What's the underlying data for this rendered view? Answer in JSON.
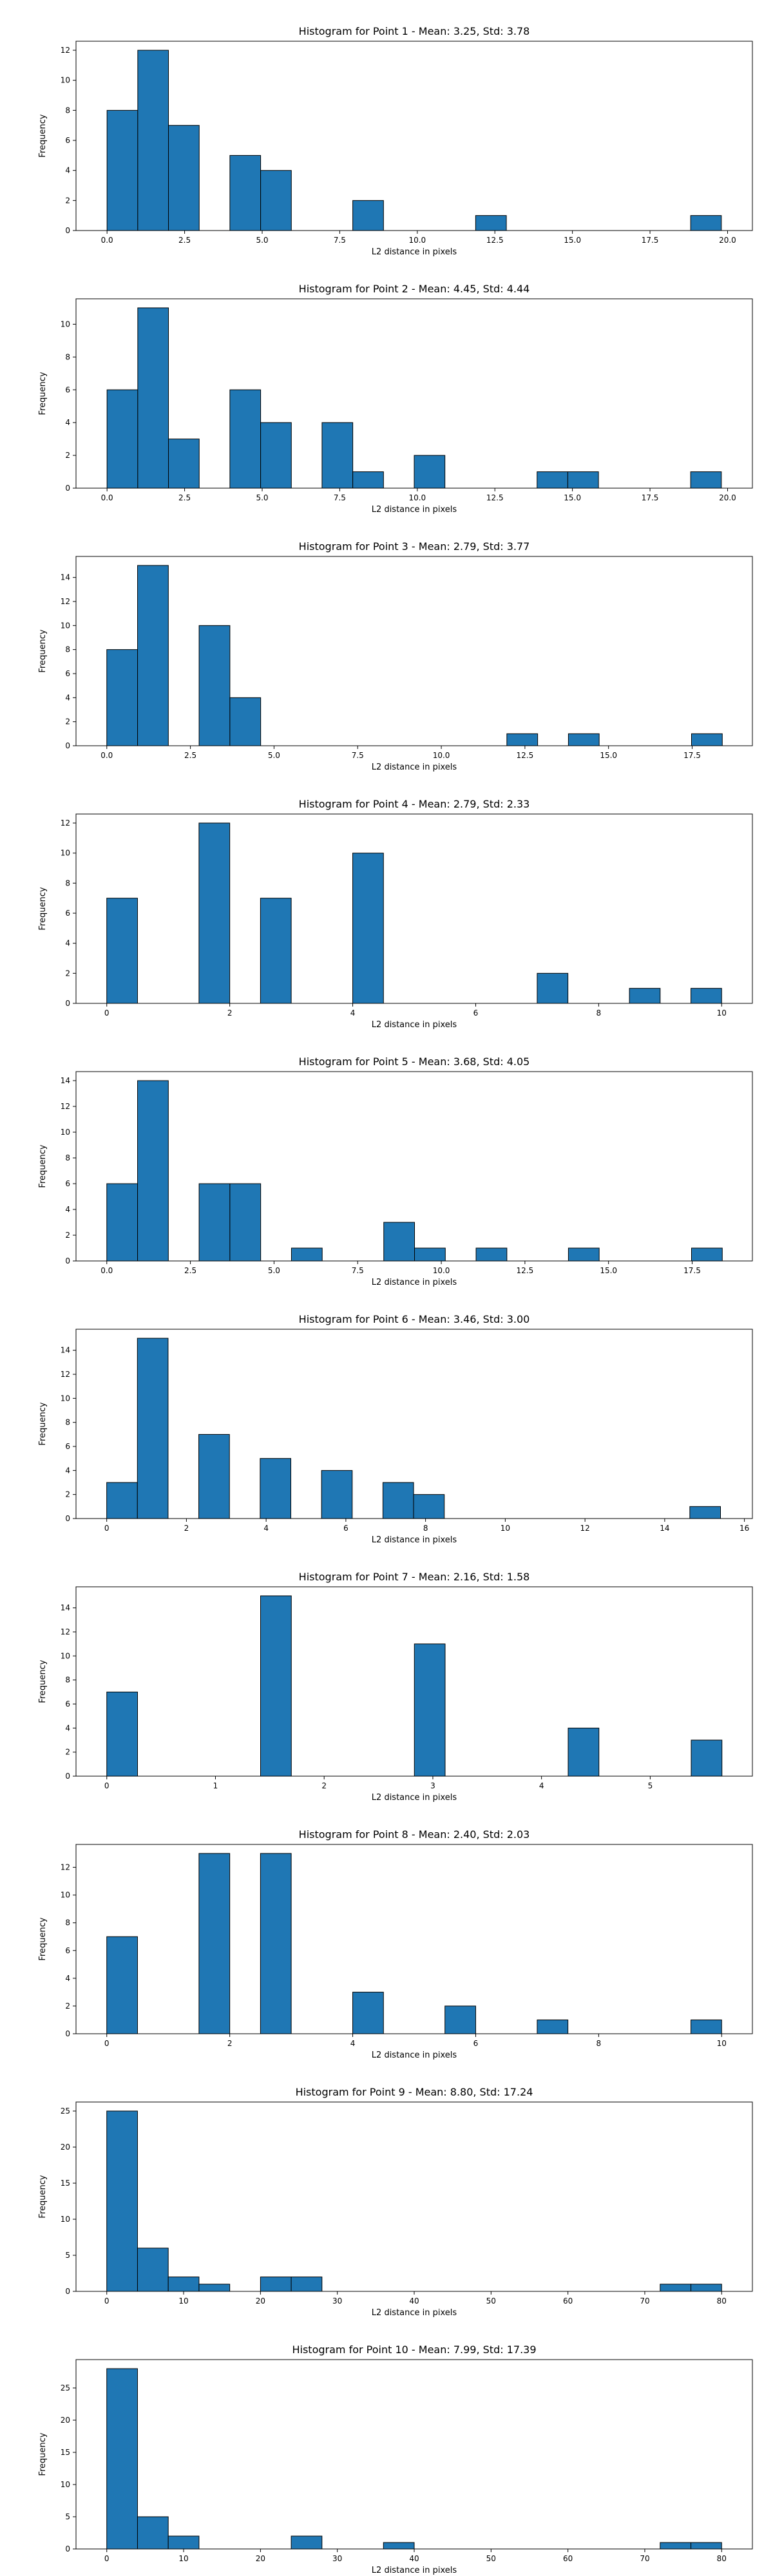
{
  "colors": {
    "bar_fill": "#1f77b4",
    "bar_edge": "#000000",
    "axes": "#000000",
    "background": "#ffffff"
  },
  "chart_data": [
    {
      "type": "bar",
      "subtype": "histogram",
      "title": "Histogram for Point 1 - Mean: 3.25, Std: 3.78",
      "xlabel": "L2 distance in pixels",
      "ylabel": "Frequency",
      "bin_start": 0,
      "bin_width": 0.99,
      "values": [
        8,
        12,
        7,
        0,
        5,
        4,
        0,
        0,
        2,
        0,
        0,
        0,
        1,
        0,
        0,
        0,
        0,
        0,
        0,
        1
      ],
      "xlim": [
        -1,
        20.8
      ],
      "ylim": [
        0,
        12.6
      ],
      "xticks": [
        0,
        2.5,
        5,
        7.5,
        10,
        12.5,
        15,
        17.5,
        20
      ],
      "xtick_labels": [
        "0.0",
        "2.5",
        "5.0",
        "7.5",
        "10.0",
        "12.5",
        "15.0",
        "17.5",
        "20.0"
      ],
      "yticks": [
        0,
        2,
        4,
        6,
        8,
        10,
        12
      ],
      "ytick_labels": [
        "0",
        "2",
        "4",
        "6",
        "8",
        "10",
        "12"
      ],
      "grid": false,
      "legend": "none"
    },
    {
      "type": "bar",
      "subtype": "histogram",
      "title": "Histogram for Point 2 - Mean: 4.45, Std: 4.44",
      "xlabel": "L2 distance in pixels",
      "ylabel": "Frequency",
      "bin_start": 0,
      "bin_width": 0.99,
      "values": [
        6,
        11,
        3,
        0,
        6,
        4,
        0,
        4,
        1,
        0,
        2,
        0,
        0,
        0,
        1,
        1,
        0,
        0,
        0,
        1
      ],
      "xlim": [
        -1,
        20.8
      ],
      "ylim": [
        0,
        11.55
      ],
      "xticks": [
        0,
        2.5,
        5,
        7.5,
        10,
        12.5,
        15,
        17.5,
        20
      ],
      "xtick_labels": [
        "0.0",
        "2.5",
        "5.0",
        "7.5",
        "10.0",
        "12.5",
        "15.0",
        "17.5",
        "20.0"
      ],
      "yticks": [
        0,
        2,
        4,
        6,
        8,
        10
      ],
      "ytick_labels": [
        "0",
        "2",
        "4",
        "6",
        "8",
        "10"
      ],
      "grid": false,
      "legend": "none"
    },
    {
      "type": "bar",
      "subtype": "histogram",
      "title": "Histogram for Point 3 - Mean: 2.79, Std: 3.77",
      "xlabel": "L2 distance in pixels",
      "ylabel": "Frequency",
      "bin_start": 0,
      "bin_width": 0.92,
      "values": [
        8,
        15,
        0,
        10,
        4,
        0,
        0,
        0,
        0,
        0,
        0,
        0,
        0,
        1,
        0,
        1,
        0,
        0,
        0,
        1
      ],
      "xlim": [
        -0.92,
        19.3
      ],
      "ylim": [
        0,
        15.75
      ],
      "xticks": [
        0,
        2.5,
        5,
        7.5,
        10,
        12.5,
        15,
        17.5
      ],
      "xtick_labels": [
        "0.0",
        "2.5",
        "5.0",
        "7.5",
        "10.0",
        "12.5",
        "15.0",
        "17.5"
      ],
      "yticks": [
        0,
        2,
        4,
        6,
        8,
        10,
        12,
        14
      ],
      "ytick_labels": [
        "0",
        "2",
        "4",
        "6",
        "8",
        "10",
        "12",
        "14"
      ],
      "grid": false,
      "legend": "none"
    },
    {
      "type": "bar",
      "subtype": "histogram",
      "title": "Histogram for Point 4 - Mean: 2.79, Std: 2.33",
      "xlabel": "L2 distance in pixels",
      "ylabel": "Frequency",
      "bin_start": 0,
      "bin_width": 0.5,
      "values": [
        7,
        0,
        0,
        12,
        0,
        7,
        0,
        0,
        10,
        0,
        0,
        0,
        0,
        0,
        2,
        0,
        0,
        1,
        0,
        1
      ],
      "xlim": [
        -0.5,
        10.5
      ],
      "ylim": [
        0,
        12.6
      ],
      "xticks": [
        0,
        2,
        4,
        6,
        8,
        10
      ],
      "xtick_labels": [
        "0",
        "2",
        "4",
        "6",
        "8",
        "10"
      ],
      "yticks": [
        0,
        2,
        4,
        6,
        8,
        10,
        12
      ],
      "ytick_labels": [
        "0",
        "2",
        "4",
        "6",
        "8",
        "10",
        "12"
      ],
      "grid": false,
      "legend": "none"
    },
    {
      "type": "bar",
      "subtype": "histogram",
      "title": "Histogram for Point 5 - Mean: 3.68, Std: 4.05",
      "xlabel": "L2 distance in pixels",
      "ylabel": "Frequency",
      "bin_start": 0,
      "bin_width": 0.92,
      "values": [
        6,
        14,
        0,
        6,
        6,
        0,
        1,
        0,
        0,
        3,
        1,
        0,
        1,
        0,
        0,
        1,
        0,
        0,
        0,
        1
      ],
      "xlim": [
        -0.92,
        19.3
      ],
      "ylim": [
        0,
        14.7
      ],
      "xticks": [
        0,
        2.5,
        5,
        7.5,
        10,
        12.5,
        15,
        17.5
      ],
      "xtick_labels": [
        "0.0",
        "2.5",
        "5.0",
        "7.5",
        "10.0",
        "12.5",
        "15.0",
        "17.5"
      ],
      "yticks": [
        0,
        2,
        4,
        6,
        8,
        10,
        12,
        14
      ],
      "ytick_labels": [
        "0",
        "2",
        "4",
        "6",
        "8",
        "10",
        "12",
        "14"
      ],
      "grid": false,
      "legend": "none"
    },
    {
      "type": "bar",
      "subtype": "histogram",
      "title": "Histogram for Point 6 - Mean: 3.46, Std: 3.00",
      "xlabel": "L2 distance in pixels",
      "ylabel": "Frequency",
      "bin_start": 0,
      "bin_width": 0.77,
      "values": [
        3,
        15,
        0,
        7,
        0,
        5,
        0,
        4,
        0,
        3,
        2,
        0,
        0,
        0,
        0,
        0,
        0,
        0,
        0,
        1
      ],
      "xlim": [
        -0.77,
        16.2
      ],
      "ylim": [
        0,
        15.75
      ],
      "xticks": [
        0,
        2,
        4,
        6,
        8,
        10,
        12,
        14,
        16
      ],
      "xtick_labels": [
        "0",
        "2",
        "4",
        "6",
        "8",
        "10",
        "12",
        "14",
        "16"
      ],
      "yticks": [
        0,
        2,
        4,
        6,
        8,
        10,
        12,
        14
      ],
      "ytick_labels": [
        "0",
        "2",
        "4",
        "6",
        "8",
        "10",
        "12",
        "14"
      ],
      "grid": false,
      "legend": "none"
    },
    {
      "type": "bar",
      "subtype": "histogram",
      "title": "Histogram for Point 7 - Mean: 2.16, Std: 1.58",
      "xlabel": "L2 distance in pixels",
      "ylabel": "Frequency",
      "bin_start": 0,
      "bin_width": 0.283,
      "values": [
        7,
        0,
        0,
        0,
        0,
        15,
        0,
        0,
        0,
        0,
        11,
        0,
        0,
        0,
        0,
        4,
        0,
        0,
        0,
        3
      ],
      "xlim": [
        -0.283,
        5.94
      ],
      "ylim": [
        0,
        15.75
      ],
      "xticks": [
        0,
        1,
        2,
        3,
        4,
        5
      ],
      "xtick_labels": [
        "0",
        "1",
        "2",
        "3",
        "4",
        "5"
      ],
      "yticks": [
        0,
        2,
        4,
        6,
        8,
        10,
        12,
        14
      ],
      "ytick_labels": [
        "0",
        "2",
        "4",
        "6",
        "8",
        "10",
        "12",
        "14"
      ],
      "grid": false,
      "legend": "none"
    },
    {
      "type": "bar",
      "subtype": "histogram",
      "title": "Histogram for Point 8 - Mean: 2.40, Std: 2.03",
      "xlabel": "L2 distance in pixels",
      "ylabel": "Frequency",
      "bin_start": 0,
      "bin_width": 0.5,
      "values": [
        7,
        0,
        0,
        13,
        0,
        13,
        0,
        0,
        3,
        0,
        0,
        2,
        0,
        0,
        1,
        0,
        0,
        0,
        0,
        1
      ],
      "xlim": [
        -0.5,
        10.5
      ],
      "ylim": [
        0,
        13.65
      ],
      "xticks": [
        0,
        2,
        4,
        6,
        8,
        10
      ],
      "xtick_labels": [
        "0",
        "2",
        "4",
        "6",
        "8",
        "10"
      ],
      "yticks": [
        0,
        2,
        4,
        6,
        8,
        10,
        12
      ],
      "ytick_labels": [
        "0",
        "2",
        "4",
        "6",
        "8",
        "10",
        "12"
      ],
      "grid": false,
      "legend": "none"
    },
    {
      "type": "bar",
      "subtype": "histogram",
      "title": "Histogram for Point 9 - Mean: 8.80, Std: 17.24",
      "xlabel": "L2 distance in pixels",
      "ylabel": "Frequency",
      "bin_start": 0,
      "bin_width": 4.0,
      "values": [
        25,
        6,
        2,
        1,
        0,
        2,
        2,
        0,
        0,
        0,
        0,
        0,
        0,
        0,
        0,
        0,
        0,
        0,
        1,
        1
      ],
      "xlim": [
        -4,
        84
      ],
      "ylim": [
        0,
        26.25
      ],
      "xticks": [
        0,
        10,
        20,
        30,
        40,
        50,
        60,
        70,
        80
      ],
      "xtick_labels": [
        "0",
        "10",
        "20",
        "30",
        "40",
        "50",
        "60",
        "70",
        "80"
      ],
      "yticks": [
        0,
        5,
        10,
        15,
        20,
        25
      ],
      "ytick_labels": [
        "0",
        "5",
        "10",
        "15",
        "20",
        "25"
      ],
      "grid": false,
      "legend": "none"
    },
    {
      "type": "bar",
      "subtype": "histogram",
      "title": "Histogram for Point 10 - Mean: 7.99, Std: 17.39",
      "xlabel": "L2 distance in pixels",
      "ylabel": "Frequency",
      "bin_start": 0,
      "bin_width": 4.0,
      "values": [
        28,
        5,
        2,
        0,
        0,
        0,
        2,
        0,
        0,
        1,
        0,
        0,
        0,
        0,
        0,
        0,
        0,
        0,
        1,
        1
      ],
      "xlim": [
        -4,
        84
      ],
      "ylim": [
        0,
        29.4
      ],
      "xticks": [
        0,
        10,
        20,
        30,
        40,
        50,
        60,
        70,
        80
      ],
      "xtick_labels": [
        "0",
        "10",
        "20",
        "30",
        "40",
        "50",
        "60",
        "70",
        "80"
      ],
      "yticks": [
        0,
        5,
        10,
        15,
        20,
        25
      ],
      "ytick_labels": [
        "0",
        "5",
        "10",
        "15",
        "20",
        "25"
      ],
      "grid": false,
      "legend": "none"
    }
  ]
}
